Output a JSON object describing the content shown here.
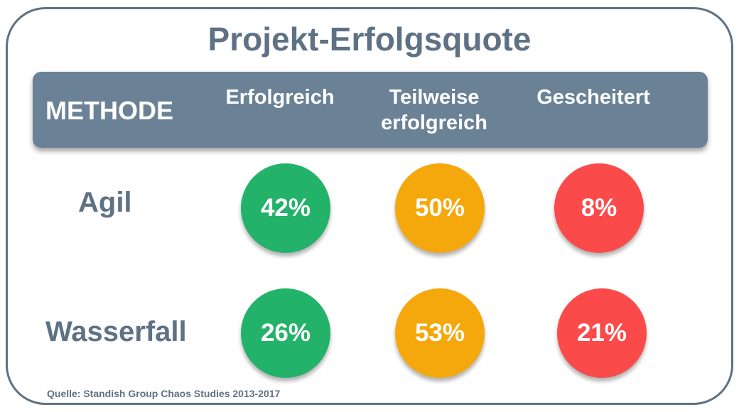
{
  "chart_data": {
    "type": "table",
    "title": "Projekt-Erfolgsquote",
    "header": {
      "row_header": "METHODE",
      "columns": [
        "Erfolgreich",
        "Teilweise\nerfolgreich",
        "Gescheitert"
      ]
    },
    "rows": [
      {
        "label": "Agil",
        "values": [
          "42%",
          "50%",
          "8%"
        ]
      },
      {
        "label": "Wasserfall",
        "values": [
          "26%",
          "53%",
          "21%"
        ]
      }
    ],
    "colors": [
      "#22b26a",
      "#f4a80c",
      "#fb4a4a"
    ],
    "source": "Quelle: Standish Group Chaos Studies 2013-2017"
  }
}
